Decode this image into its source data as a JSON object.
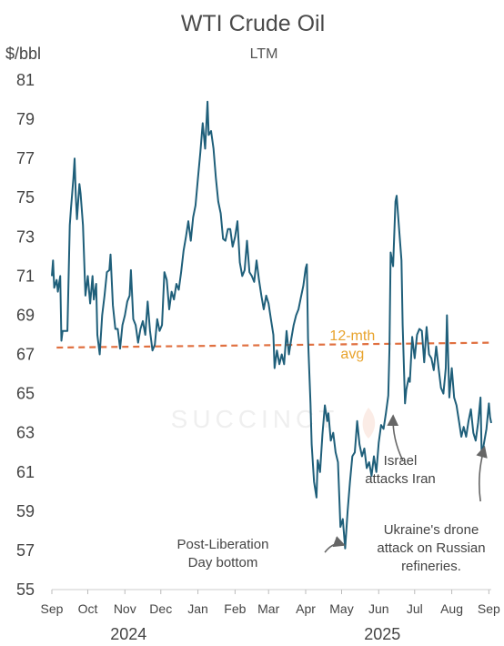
{
  "chart_data": {
    "type": "line",
    "title": "WTI Crude Oil",
    "subtitle": "LTM",
    "ylabel": "$/bbl",
    "ylim": [
      55,
      81
    ],
    "yticks": [
      "81",
      "79",
      "77",
      "75",
      "73",
      "71",
      "69",
      "67",
      "65",
      "63",
      "61",
      "59",
      "57",
      "55"
    ],
    "xlim": [
      "2024-09-01",
      "2025-09-03"
    ],
    "months": [
      {
        "label": "Sep",
        "date": "2024-09-01"
      },
      {
        "label": "Oct",
        "date": "2024-10-01"
      },
      {
        "label": "Nov",
        "date": "2024-11-01"
      },
      {
        "label": "Dec",
        "date": "2024-12-01"
      },
      {
        "label": "Jan",
        "date": "2025-01-01"
      },
      {
        "label": "Feb",
        "date": "2025-02-01"
      },
      {
        "label": "Mar",
        "date": "2025-03-01"
      },
      {
        "label": "Apr",
        "date": "2025-04-01"
      },
      {
        "label": "May",
        "date": "2025-05-01"
      },
      {
        "label": "Jun",
        "date": "2025-06-01"
      },
      {
        "label": "Jul",
        "date": "2025-07-01"
      },
      {
        "label": "Aug",
        "date": "2025-08-01"
      },
      {
        "label": "Sep",
        "date": "2025-09-01"
      }
    ],
    "years": [
      {
        "label": "2024",
        "date": "2024-11-01"
      },
      {
        "label": "2025",
        "date": "2025-06-01"
      }
    ],
    "series": [
      {
        "color": "#1f5f7a",
        "points": [
          [
            "2024-09-01",
            71.0
          ],
          [
            "2024-09-02",
            71.8
          ],
          [
            "2024-09-03",
            70.4
          ],
          [
            "2024-09-05",
            70.8
          ],
          [
            "2024-09-06",
            70.2
          ],
          [
            "2024-09-08",
            71.0
          ],
          [
            "2024-09-09",
            67.7
          ],
          [
            "2024-09-10",
            68.2
          ],
          [
            "2024-09-12",
            68.2
          ],
          [
            "2024-09-14",
            68.2
          ],
          [
            "2024-09-16",
            73.6
          ],
          [
            "2024-09-17",
            74.5
          ],
          [
            "2024-09-19",
            76.0
          ],
          [
            "2024-09-20",
            77.0
          ],
          [
            "2024-09-21",
            75.1
          ],
          [
            "2024-09-22",
            73.9
          ],
          [
            "2024-09-24",
            75.7
          ],
          [
            "2024-09-25",
            75.2
          ],
          [
            "2024-09-27",
            73.6
          ],
          [
            "2024-09-29",
            70.0
          ],
          [
            "2024-10-01",
            71.0
          ],
          [
            "2024-10-03",
            69.6
          ],
          [
            "2024-10-05",
            71.0
          ],
          [
            "2024-10-06",
            69.8
          ],
          [
            "2024-10-08",
            70.6
          ],
          [
            "2024-10-09",
            68.0
          ],
          [
            "2024-10-11",
            67.0
          ],
          [
            "2024-10-13",
            69.0
          ],
          [
            "2024-10-15",
            70.0
          ],
          [
            "2024-10-17",
            71.2
          ],
          [
            "2024-10-19",
            71.3
          ],
          [
            "2024-10-20",
            72.1
          ],
          [
            "2024-10-22",
            69.5
          ],
          [
            "2024-10-24",
            68.3
          ],
          [
            "2024-10-26",
            68.3
          ],
          [
            "2024-10-28",
            67.3
          ],
          [
            "2024-10-30",
            68.5
          ],
          [
            "2024-11-01",
            69.0
          ],
          [
            "2024-11-03",
            69.7
          ],
          [
            "2024-11-05",
            70.0
          ],
          [
            "2024-11-06",
            71.3
          ],
          [
            "2024-11-08",
            68.8
          ],
          [
            "2024-11-10",
            68.5
          ],
          [
            "2024-11-12",
            67.6
          ],
          [
            "2024-11-14",
            68.3
          ],
          [
            "2024-11-16",
            68.7
          ],
          [
            "2024-11-18",
            68.0
          ],
          [
            "2024-11-20",
            69.7
          ],
          [
            "2024-11-22",
            68.2
          ],
          [
            "2024-11-24",
            67.2
          ],
          [
            "2024-11-26",
            67.5
          ],
          [
            "2024-11-28",
            68.8
          ],
          [
            "2024-11-30",
            68.2
          ],
          [
            "2024-12-02",
            68.5
          ],
          [
            "2024-12-04",
            71.2
          ],
          [
            "2024-12-06",
            70.8
          ],
          [
            "2024-12-08",
            69.3
          ],
          [
            "2024-12-10",
            70.2
          ],
          [
            "2024-12-12",
            69.8
          ],
          [
            "2024-12-14",
            70.6
          ],
          [
            "2024-12-16",
            70.3
          ],
          [
            "2024-12-18",
            71.2
          ],
          [
            "2024-12-20",
            72.3
          ],
          [
            "2024-12-22",
            73.0
          ],
          [
            "2024-12-24",
            73.8
          ],
          [
            "2024-12-26",
            72.8
          ],
          [
            "2024-12-28",
            74.0
          ],
          [
            "2024-12-30",
            74.6
          ],
          [
            "2025-01-01",
            76.0
          ],
          [
            "2025-01-03",
            77.3
          ],
          [
            "2025-01-05",
            78.8
          ],
          [
            "2025-01-07",
            77.5
          ],
          [
            "2025-01-09",
            79.9
          ],
          [
            "2025-01-10",
            78.2
          ],
          [
            "2025-01-12",
            78.4
          ],
          [
            "2025-01-14",
            77.5
          ],
          [
            "2025-01-16",
            76.0
          ],
          [
            "2025-01-18",
            74.8
          ],
          [
            "2025-01-20",
            74.2
          ],
          [
            "2025-01-22",
            72.9
          ],
          [
            "2025-01-24",
            72.8
          ],
          [
            "2025-01-26",
            73.4
          ],
          [
            "2025-01-28",
            73.4
          ],
          [
            "2025-01-30",
            72.5
          ],
          [
            "2025-02-01",
            73.0
          ],
          [
            "2025-02-03",
            73.8
          ],
          [
            "2025-02-05",
            71.7
          ],
          [
            "2025-02-07",
            71.0
          ],
          [
            "2025-02-09",
            71.3
          ],
          [
            "2025-02-11",
            72.8
          ],
          [
            "2025-02-13",
            71.2
          ],
          [
            "2025-02-15",
            71.0
          ],
          [
            "2025-02-17",
            70.7
          ],
          [
            "2025-02-19",
            71.8
          ],
          [
            "2025-02-21",
            70.8
          ],
          [
            "2025-02-23",
            70.0
          ],
          [
            "2025-02-25",
            69.3
          ],
          [
            "2025-02-27",
            70.0
          ],
          [
            "2025-03-01",
            69.6
          ],
          [
            "2025-03-03",
            68.8
          ],
          [
            "2025-03-05",
            68.0
          ],
          [
            "2025-03-06",
            66.3
          ],
          [
            "2025-03-08",
            67.2
          ],
          [
            "2025-03-10",
            66.5
          ],
          [
            "2025-03-12",
            67.0
          ],
          [
            "2025-03-14",
            66.5
          ],
          [
            "2025-03-16",
            68.2
          ],
          [
            "2025-03-18",
            67.0
          ],
          [
            "2025-03-20",
            67.8
          ],
          [
            "2025-03-22",
            68.5
          ],
          [
            "2025-03-24",
            69.0
          ],
          [
            "2025-03-26",
            69.3
          ],
          [
            "2025-03-28",
            69.9
          ],
          [
            "2025-03-30",
            70.5
          ],
          [
            "2025-04-01",
            71.4
          ],
          [
            "2025-04-02",
            71.6
          ],
          [
            "2025-04-03",
            67.8
          ],
          [
            "2025-04-05",
            64.5
          ],
          [
            "2025-04-06",
            62.4
          ],
          [
            "2025-04-08",
            60.5
          ],
          [
            "2025-04-10",
            59.7
          ],
          [
            "2025-04-11",
            61.6
          ],
          [
            "2025-04-13",
            61.0
          ],
          [
            "2025-04-15",
            62.9
          ],
          [
            "2025-04-17",
            64.4
          ],
          [
            "2025-04-19",
            63.6
          ],
          [
            "2025-04-20",
            64.0
          ],
          [
            "2025-04-22",
            62.6
          ],
          [
            "2025-04-24",
            63.0
          ],
          [
            "2025-04-26",
            62.0
          ],
          [
            "2025-04-28",
            61.5
          ],
          [
            "2025-04-30",
            58.2
          ],
          [
            "2025-05-02",
            58.6
          ],
          [
            "2025-05-04",
            57.1
          ],
          [
            "2025-05-06",
            59.0
          ],
          [
            "2025-05-08",
            60.5
          ],
          [
            "2025-05-10",
            61.8
          ],
          [
            "2025-05-12",
            62.0
          ],
          [
            "2025-05-14",
            63.6
          ],
          [
            "2025-05-16",
            62.4
          ],
          [
            "2025-05-18",
            61.8
          ],
          [
            "2025-05-20",
            62.2
          ],
          [
            "2025-05-22",
            61.2
          ],
          [
            "2025-05-24",
            61.5
          ],
          [
            "2025-05-26",
            60.8
          ],
          [
            "2025-05-28",
            61.8
          ],
          [
            "2025-05-30",
            61.0
          ],
          [
            "2025-06-01",
            62.5
          ],
          [
            "2025-06-03",
            63.4
          ],
          [
            "2025-06-05",
            63.2
          ],
          [
            "2025-06-07",
            64.0
          ],
          [
            "2025-06-09",
            64.9
          ],
          [
            "2025-06-10",
            67.3
          ],
          [
            "2025-06-11",
            72.2
          ],
          [
            "2025-06-13",
            71.5
          ],
          [
            "2025-06-15",
            74.8
          ],
          [
            "2025-06-16",
            75.1
          ],
          [
            "2025-06-18",
            73.4
          ],
          [
            "2025-06-20",
            71.8
          ],
          [
            "2025-06-21",
            68.5
          ],
          [
            "2025-06-23",
            64.5
          ],
          [
            "2025-06-24",
            65.2
          ],
          [
            "2025-06-26",
            65.8
          ],
          [
            "2025-06-27",
            65.6
          ],
          [
            "2025-06-29",
            67.9
          ],
          [
            "2025-07-01",
            66.8
          ],
          [
            "2025-07-03",
            68.0
          ],
          [
            "2025-07-05",
            68.3
          ],
          [
            "2025-07-07",
            68.2
          ],
          [
            "2025-07-09",
            66.6
          ],
          [
            "2025-07-11",
            68.4
          ],
          [
            "2025-07-13",
            67.0
          ],
          [
            "2025-07-15",
            66.8
          ],
          [
            "2025-07-17",
            66.2
          ],
          [
            "2025-07-19",
            67.4
          ],
          [
            "2025-07-21",
            66.3
          ],
          [
            "2025-07-23",
            65.3
          ],
          [
            "2025-07-25",
            65.0
          ],
          [
            "2025-07-27",
            66.3
          ],
          [
            "2025-07-28",
            69.0
          ],
          [
            "2025-07-30",
            64.8
          ],
          [
            "2025-08-01",
            66.3
          ],
          [
            "2025-08-03",
            64.8
          ],
          [
            "2025-08-05",
            64.4
          ],
          [
            "2025-08-07",
            63.6
          ],
          [
            "2025-08-09",
            62.8
          ],
          [
            "2025-08-11",
            63.3
          ],
          [
            "2025-08-13",
            62.8
          ],
          [
            "2025-08-15",
            63.6
          ],
          [
            "2025-08-17",
            64.2
          ],
          [
            "2025-08-19",
            63.0
          ],
          [
            "2025-08-21",
            62.6
          ],
          [
            "2025-08-23",
            63.5
          ],
          [
            "2025-08-25",
            64.8
          ],
          [
            "2025-08-26",
            61.8
          ],
          [
            "2025-08-28",
            62.5
          ],
          [
            "2025-08-30",
            63.2
          ],
          [
            "2025-09-01",
            64.5
          ],
          [
            "2025-09-02",
            63.8
          ],
          [
            "2025-09-03",
            63.5
          ]
        ]
      }
    ],
    "avg_line": {
      "color": "#e07040",
      "start": [
        "2024-09-05",
        67.35
      ],
      "end": [
        "2025-09-03",
        67.6
      ],
      "label_lines": [
        "12-mth",
        "avg"
      ]
    },
    "annotations": [
      {
        "label_lines": [
          "Post-Liberation",
          "Day bottom"
        ],
        "target": [
          "2025-05-02",
          57.3
        ],
        "arrow_from": [
          "2025-04-17",
          56.9
        ]
      },
      {
        "label_lines": [
          "Israel",
          "attacks Iran"
        ],
        "target": [
          "2025-06-13",
          63.8
        ],
        "arrow_from": [
          "2025-06-21",
          61.6
        ]
      },
      {
        "label_lines": [
          "Ukraine's drone",
          "attack on Russian",
          "refineries."
        ],
        "target": [
          "2025-08-28",
          62.2
        ],
        "arrow_from": [
          "2025-08-25",
          59.5
        ]
      }
    ],
    "watermark": "SUCCINCT",
    "grid": false,
    "legend": "none"
  }
}
